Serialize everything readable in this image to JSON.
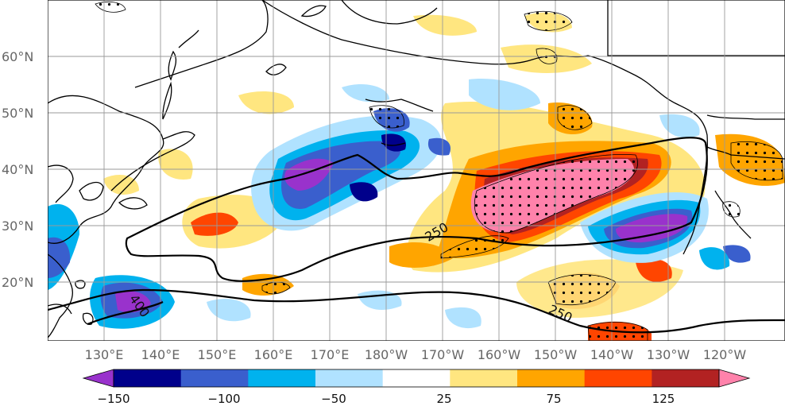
{
  "map": {
    "lat_labels": [
      "60°N",
      "50°N",
      "40°N",
      "30°N",
      "20°N"
    ],
    "lon_labels": [
      "130°E",
      "140°E",
      "150°E",
      "160°E",
      "170°E",
      "180°W",
      "170°W",
      "160°W",
      "150°W",
      "140°W",
      "130°W",
      "120°W"
    ],
    "contour_labels": [
      "250",
      "250",
      "400"
    ]
  },
  "colorbar": {
    "tick_labels": [
      "−150",
      "−100",
      "−50",
      "25",
      "75",
      "125"
    ],
    "colors": [
      "#9932cc",
      "#00008b",
      "#3a5fcd",
      "#00b2ee",
      "#b0e2ff",
      "#ffffff",
      "#ffe680",
      "#ffa500",
      "#ff4500",
      "#b22222",
      "#ff82ab"
    ]
  }
}
